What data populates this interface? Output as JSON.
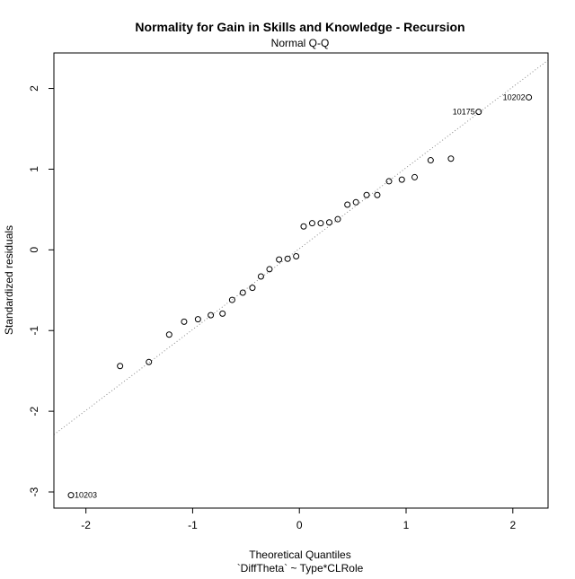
{
  "chart_data": {
    "type": "scatter",
    "title": "Normality for Gain in Skills and Knowledge - Recursion",
    "subtitle": "Normal Q-Q",
    "xlabel": "Theoretical Quantiles",
    "xlabel2": "`DiffTheta` ~ Type*CLRole",
    "ylabel": "Standardized residuals",
    "xlim": [
      -2.3,
      2.33
    ],
    "ylim": [
      -3.2,
      2.44
    ],
    "xticks": [
      -2,
      -1,
      0,
      1,
      2
    ],
    "xtick_labels": [
      "-2",
      "-1",
      "0",
      "1",
      "2"
    ],
    "yticks": [
      -3,
      -2,
      -1,
      0,
      1,
      2
    ],
    "ytick_labels": [
      "-3",
      "-2",
      "-1",
      "0",
      "1",
      "2"
    ],
    "reference_line": {
      "x": [
        -2.3,
        2.33
      ],
      "y": [
        -2.29,
        2.35
      ]
    },
    "points": [
      {
        "x": -2.14,
        "y": -3.04
      },
      {
        "x": -1.68,
        "y": -1.44
      },
      {
        "x": -1.41,
        "y": -1.39
      },
      {
        "x": -1.22,
        "y": -1.05
      },
      {
        "x": -1.08,
        "y": -0.89
      },
      {
        "x": -0.95,
        "y": -0.86
      },
      {
        "x": -0.83,
        "y": -0.81
      },
      {
        "x": -0.72,
        "y": -0.79
      },
      {
        "x": -0.63,
        "y": -0.62
      },
      {
        "x": -0.53,
        "y": -0.53
      },
      {
        "x": -0.44,
        "y": -0.47
      },
      {
        "x": -0.36,
        "y": -0.33
      },
      {
        "x": -0.28,
        "y": -0.24
      },
      {
        "x": -0.19,
        "y": -0.12
      },
      {
        "x": -0.11,
        "y": -0.11
      },
      {
        "x": -0.03,
        "y": -0.08
      },
      {
        "x": 0.04,
        "y": 0.29
      },
      {
        "x": 0.12,
        "y": 0.33
      },
      {
        "x": 0.2,
        "y": 0.33
      },
      {
        "x": 0.28,
        "y": 0.34
      },
      {
        "x": 0.36,
        "y": 0.38
      },
      {
        "x": 0.45,
        "y": 0.56
      },
      {
        "x": 0.53,
        "y": 0.59
      },
      {
        "x": 0.63,
        "y": 0.68
      },
      {
        "x": 0.73,
        "y": 0.68
      },
      {
        "x": 0.84,
        "y": 0.85
      },
      {
        "x": 0.96,
        "y": 0.87
      },
      {
        "x": 1.08,
        "y": 0.9
      },
      {
        "x": 1.23,
        "y": 1.11
      },
      {
        "x": 1.42,
        "y": 1.13
      },
      {
        "x": 1.68,
        "y": 1.71
      },
      {
        "x": 2.15,
        "y": 1.89
      }
    ],
    "labeled_points": [
      {
        "label": "10203",
        "x": -2.14,
        "y": -3.04,
        "side": "right"
      },
      {
        "label": "10175",
        "x": 1.68,
        "y": 1.71,
        "side": "left"
      },
      {
        "label": "10202",
        "x": 2.15,
        "y": 1.89,
        "side": "left"
      }
    ],
    "colors": {
      "points": "#000000",
      "reference_line": "#888888",
      "frame": "#000000"
    }
  }
}
